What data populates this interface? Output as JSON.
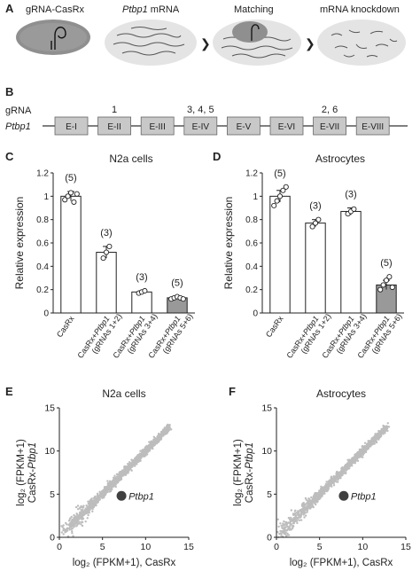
{
  "panel_a": {
    "letter": "A",
    "stage1_label": "gRNA-CasRx",
    "stage2_label_italic": "Ptbp1",
    "stage2_label_rest": " mRNA",
    "stage3_label": "Matching",
    "stage4_label": "mRNA knockdown"
  },
  "panel_b": {
    "letter": "B",
    "grna_label": "gRNA",
    "gene_label": "Ptbp1",
    "exons": [
      "E-I",
      "E-II",
      "E-III",
      "E-IV",
      "E-V",
      "E-VI",
      "E-VII",
      "E-VIII"
    ],
    "grna_sites": [
      {
        "text": "1",
        "exon_index": 1
      },
      {
        "text": "3, 4, 5",
        "exon_index": 3
      },
      {
        "text": "2, 6",
        "exon_index": 6
      }
    ]
  },
  "chart_data": [
    {
      "panel": "C",
      "type": "bar",
      "title": "N2a cells",
      "ylabel": "Relative expression",
      "ylim": [
        0,
        1.2
      ],
      "yticks": [
        "0",
        "0.2",
        "0.4",
        "0.6",
        "0.8",
        "1",
        "1.2"
      ],
      "categories": [
        {
          "main": "CasRx",
          "italic": "",
          "sub": ""
        },
        {
          "main": "CasRx+",
          "italic": "Ptbp1",
          "sub": "(gRNAs 1+2)"
        },
        {
          "main": "CasRx+",
          "italic": "Ptbp1",
          "sub": "(gRNAs 3+4)"
        },
        {
          "main": "CasRx+",
          "italic": "Ptbp1",
          "sub": "(gRNAs  5+6)"
        }
      ],
      "values": [
        1.0,
        0.52,
        0.18,
        0.13
      ],
      "errors": [
        0.04,
        0.05,
        0.01,
        0.01
      ],
      "n_labels": [
        "(5)",
        "(3)",
        "(3)",
        "(5)"
      ],
      "points": [
        [
          0.97,
          1.0,
          1.03,
          0.95,
          1.02
        ],
        [
          0.47,
          0.52,
          0.57
        ],
        [
          0.17,
          0.18,
          0.19
        ],
        [
          0.12,
          0.13,
          0.14,
          0.13,
          0.12
        ]
      ],
      "fills": [
        "#ffffff",
        "#ffffff",
        "#ffffff",
        "#999999"
      ]
    },
    {
      "panel": "D",
      "type": "bar",
      "title": "Astrocytes",
      "ylabel": "Relative expression",
      "ylim": [
        0,
        1.2
      ],
      "yticks": [
        "0",
        "0.2",
        "0.4",
        "0.6",
        "0.8",
        "1",
        "1.2"
      ],
      "categories": [
        {
          "main": "CasRx",
          "italic": "",
          "sub": ""
        },
        {
          "main": "CasRx+",
          "italic": "Ptbp1",
          "sub": "(gRNAs 1+2)"
        },
        {
          "main": "CasRx+",
          "italic": "Ptbp1",
          "sub": "(gRNAs 3+4)"
        },
        {
          "main": "CasRx+",
          "italic": "Ptbp1",
          "sub": "(gRNAs 5+6)"
        }
      ],
      "values": [
        1.0,
        0.77,
        0.87,
        0.24
      ],
      "errors": [
        0.05,
        0.03,
        0.03,
        0.04
      ],
      "n_labels": [
        "(5)",
        "(3)",
        "(3)",
        "(5)"
      ],
      "points": [
        [
          0.92,
          0.96,
          1.0,
          1.05,
          1.08
        ],
        [
          0.74,
          0.77,
          0.8
        ],
        [
          0.85,
          0.87,
          0.89
        ],
        [
          0.2,
          0.24,
          0.28,
          0.31,
          0.22
        ]
      ],
      "fills": [
        "#ffffff",
        "#ffffff",
        "#ffffff",
        "#999999"
      ]
    },
    {
      "panel": "E",
      "type": "scatter",
      "title": "N2a cells",
      "xlabel": "log₂ (FPKM+1), CasRx",
      "ylabel_line1": "log₂ (FPKM+1)",
      "ylabel_line2_main": "CasRx-",
      "ylabel_line2_italic": "Ptbp1",
      "xlim": [
        0,
        15
      ],
      "ylim": [
        0,
        15
      ],
      "xticks": [
        "0",
        "5",
        "10",
        "15"
      ],
      "yticks": [
        "0",
        "5",
        "10",
        "15"
      ],
      "highlight": {
        "label": "Ptbp1",
        "x": 7.2,
        "y": 4.8
      },
      "colors": {
        "cloud": "#bdbdbd",
        "highlight": "#404040"
      }
    },
    {
      "panel": "F",
      "type": "scatter",
      "title": "Astrocytes",
      "xlabel": "log₂ (FPKM+1), CasRx",
      "ylabel_line1": "log₂ (FPKM+1)",
      "ylabel_line2_main": "CasRx-",
      "ylabel_line2_italic": "Ptbp1",
      "xlim": [
        0,
        15
      ],
      "ylim": [
        0,
        15
      ],
      "xticks": [
        "0",
        "5",
        "10",
        "15"
      ],
      "yticks": [
        "0",
        "5",
        "10",
        "15"
      ],
      "highlight": {
        "label": "Ptbp1",
        "x": 7.8,
        "y": 4.8
      },
      "colors": {
        "cloud": "#bdbdbd",
        "highlight": "#404040"
      }
    }
  ]
}
